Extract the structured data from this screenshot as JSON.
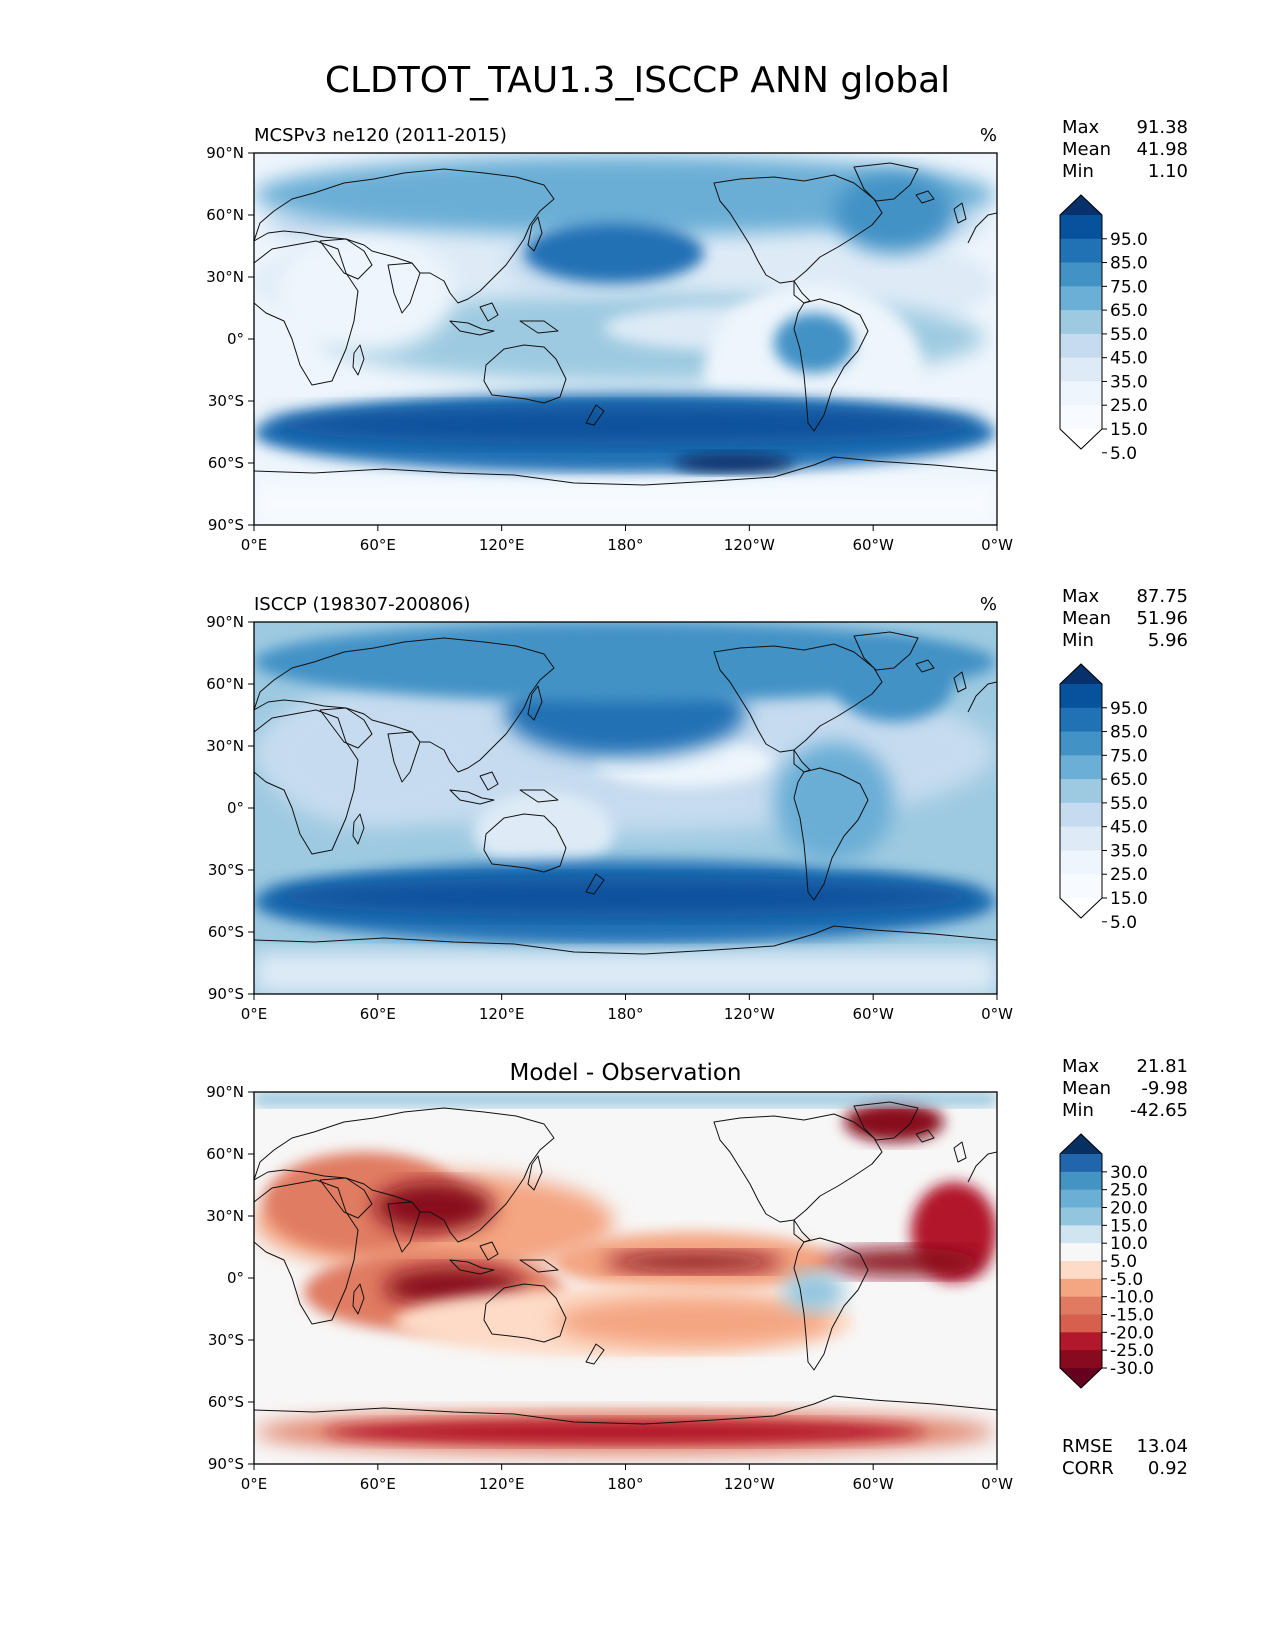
{
  "figure": {
    "title": "CLDTOT_TAU1.3_ISCCP ANN global"
  },
  "axes": {
    "lat_ticks": [
      "90°N",
      "60°N",
      "30°N",
      "0°",
      "30°S",
      "60°S",
      "90°S"
    ],
    "lon_ticks": [
      "0°E",
      "60°E",
      "120°E",
      "180°",
      "120°W",
      "60°W",
      "0°W"
    ]
  },
  "panels": [
    {
      "kind": "test",
      "left_title": "MCSPv3 ne120 (2011-2015)",
      "center_title": "",
      "units": "%",
      "stats": [
        {
          "label": "Max",
          "value": "91.38"
        },
        {
          "label": "Mean",
          "value": "41.98"
        },
        {
          "label": "Min",
          "value": "1.10"
        }
      ],
      "colorbar": {
        "labels": [
          "95.0",
          "85.0",
          "75.0",
          "65.0",
          "55.0",
          "45.0",
          "35.0",
          "25.0",
          "15.0",
          "5.0"
        ],
        "colors": [
          "#08306b",
          "#08519c",
          "#2171b5",
          "#4292c6",
          "#6baed6",
          "#9ecae1",
          "#c6dbef",
          "#deebf7",
          "#eef5fc",
          "#f7fbff",
          "#ffffff"
        ]
      },
      "footer_stats": []
    },
    {
      "kind": "reference",
      "left_title": "ISCCP (198307-200806)",
      "center_title": "",
      "units": "%",
      "stats": [
        {
          "label": "Max",
          "value": "87.75"
        },
        {
          "label": "Mean",
          "value": "51.96"
        },
        {
          "label": "Min",
          "value": "5.96"
        }
      ],
      "colorbar": {
        "labels": [
          "95.0",
          "85.0",
          "75.0",
          "65.0",
          "55.0",
          "45.0",
          "35.0",
          "25.0",
          "15.0",
          "5.0"
        ],
        "colors": [
          "#08306b",
          "#08519c",
          "#2171b5",
          "#4292c6",
          "#6baed6",
          "#9ecae1",
          "#c6dbef",
          "#deebf7",
          "#eef5fc",
          "#f7fbff",
          "#ffffff"
        ]
      },
      "footer_stats": []
    },
    {
      "kind": "difference",
      "left_title": "",
      "center_title": "Model - Observation",
      "units": "",
      "stats": [
        {
          "label": "Max",
          "value": "21.81"
        },
        {
          "label": "Mean",
          "value": "-9.98"
        },
        {
          "label": "Min",
          "value": "-42.65"
        }
      ],
      "colorbar": {
        "labels": [
          "30.0",
          "25.0",
          "20.0",
          "15.0",
          "10.0",
          "5.0",
          "-5.0",
          "-10.0",
          "-15.0",
          "-20.0",
          "-25.0",
          "-30.0"
        ],
        "colors": [
          "#053061",
          "#2166ac",
          "#4393c3",
          "#6baed6",
          "#92c5de",
          "#d1e5f0",
          "#f7f7f7",
          "#fddbc7",
          "#f4a582",
          "#e07b62",
          "#d6604d",
          "#b2182b",
          "#880a1f",
          "#67001f"
        ]
      },
      "footer_stats": [
        {
          "label": "RMSE",
          "value": "13.04"
        },
        {
          "label": "CORR",
          "value": "0.92"
        }
      ]
    }
  ]
}
